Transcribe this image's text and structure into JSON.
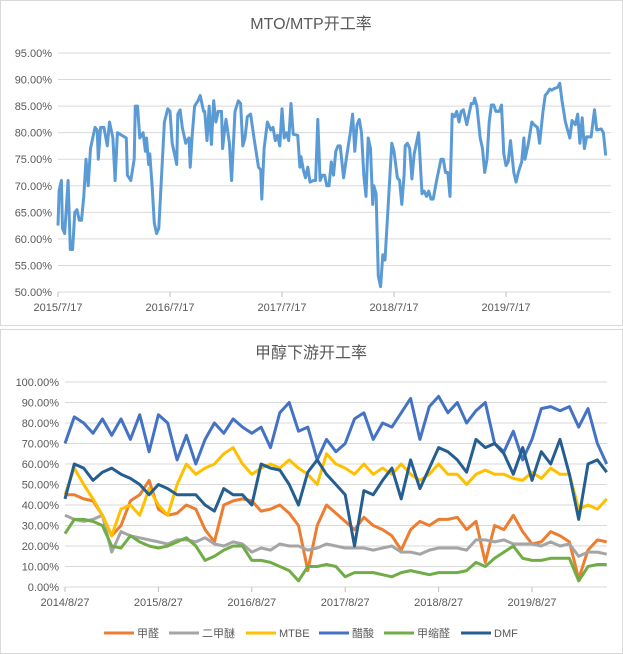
{
  "chart_data": [
    {
      "type": "line",
      "title": "MTO/MTP开工率",
      "xlabel": "",
      "ylabel": "",
      "ylim": [
        0.5,
        0.95
      ],
      "yticks": [
        "50.00%",
        "55.00%",
        "60.00%",
        "65.00%",
        "70.00%",
        "75.00%",
        "80.00%",
        "85.00%",
        "90.00%",
        "95.00%"
      ],
      "xticks": [
        "2015/7/17",
        "2016/7/17",
        "2017/7/17",
        "2018/7/17",
        "2019/7/17"
      ],
      "x_unit": "years since 2015/7/17",
      "grid": true,
      "color": "#5B9BD5",
      "series": [
        {
          "name": "MTO/MTP开工率",
          "x": [
            0,
            0.01,
            0.03,
            0.04,
            0.06,
            0.09,
            0.11,
            0.13,
            0.15,
            0.17,
            0.19,
            0.21,
            0.23,
            0.25,
            0.27,
            0.29,
            0.33,
            0.35,
            0.36,
            0.38,
            0.41,
            0.44,
            0.46,
            0.49,
            0.51,
            0.53,
            0.57,
            0.61,
            0.62,
            0.65,
            0.68,
            0.69,
            0.71,
            0.73,
            0.76,
            0.78,
            0.79,
            0.81,
            0.82,
            0.84,
            0.86,
            0.88,
            0.9,
            0.95,
            0.98,
            1.0,
            1.02,
            1.04,
            1.06,
            1.07,
            1.09,
            1.11,
            1.14,
            1.15,
            1.17,
            1.18,
            1.2,
            1.22,
            1.25,
            1.27,
            1.3,
            1.31,
            1.33,
            1.35,
            1.37,
            1.39,
            1.41,
            1.43,
            1.46,
            1.47,
            1.49,
            1.5,
            1.53,
            1.55,
            1.58,
            1.61,
            1.63,
            1.65,
            1.67,
            1.69,
            1.72,
            1.75,
            1.79,
            1.81,
            1.82,
            1.84,
            1.87,
            1.9,
            1.92,
            1.94,
            1.96,
            1.98,
            2.0,
            2.02,
            2.04,
            2.06,
            2.08,
            2.1,
            2.14,
            2.16,
            2.17,
            2.19,
            2.21,
            2.23,
            2.25,
            2.28,
            2.3,
            2.32,
            2.34,
            2.36,
            2.38,
            2.4,
            2.42,
            2.44,
            2.46,
            2.48,
            2.5,
            2.52,
            2.55,
            2.58,
            2.61,
            2.63,
            2.65,
            2.67,
            2.69,
            2.71,
            2.73,
            2.75,
            2.77,
            2.79,
            2.81,
            2.82,
            2.84,
            2.86,
            2.88,
            2.9,
            2.92,
            2.95,
            2.98,
            3.0,
            3.03,
            3.05,
            3.07,
            3.09,
            3.1,
            3.12,
            3.14,
            3.16,
            3.18,
            3.22,
            3.25,
            3.27,
            3.29,
            3.31,
            3.33,
            3.35,
            3.38,
            3.42,
            3.44,
            3.46,
            3.48,
            3.5,
            3.52,
            3.54,
            3.56,
            3.58,
            3.6,
            3.62,
            3.65,
            3.67,
            3.69,
            3.71,
            3.72,
            3.74,
            3.77,
            3.79,
            3.81,
            3.83,
            3.85,
            3.87,
            3.89,
            3.91,
            3.94,
            3.96,
            3.98,
            4.0,
            4.02,
            4.04,
            4.07,
            4.09,
            4.11,
            4.14,
            4.16,
            4.17,
            4.2,
            4.23,
            4.25,
            4.28,
            4.3,
            4.33,
            4.35,
            4.37,
            4.39,
            4.41,
            4.43,
            4.46,
            4.48,
            4.5,
            4.53,
            4.57,
            4.59,
            4.62,
            4.64,
            4.66,
            4.68,
            4.7,
            4.72,
            4.76,
            4.79,
            4.81,
            4.85,
            4.87,
            4.89
          ],
          "values": [
            62.5,
            69,
            71,
            62,
            61,
            71,
            58,
            58,
            65,
            65.5,
            63.5,
            63.5,
            68,
            75,
            70,
            77,
            81,
            80.5,
            75,
            81,
            81,
            77.5,
            82,
            79,
            71,
            80,
            79.5,
            79,
            72,
            71,
            75,
            85,
            85,
            79,
            80,
            76.5,
            79,
            74,
            76,
            70,
            63,
            61,
            62,
            82,
            84.5,
            84,
            78,
            76,
            74,
            83.5,
            84.3,
            81,
            78,
            78.5,
            79,
            73.5,
            80,
            85,
            86,
            87,
            84,
            84,
            78.5,
            85,
            77.8,
            86,
            82,
            84,
            84,
            77,
            81,
            82.5,
            78,
            71,
            84,
            86,
            85.5,
            77.5,
            79,
            83,
            83.5,
            79,
            73.5,
            73,
            67.5,
            77,
            82,
            80.5,
            81,
            78.5,
            79.5,
            77.5,
            84.5,
            79,
            80,
            78.5,
            85.5,
            79.7,
            79.5,
            73.5,
            75.5,
            73,
            71.5,
            73.5,
            70.7,
            71,
            71,
            82.5,
            71,
            72,
            72,
            70,
            70,
            74.5,
            72,
            76.5,
            77.5,
            77.5,
            71.5,
            76,
            80,
            83.5,
            76.5,
            81.5,
            82.5,
            80,
            72,
            68,
            79,
            77,
            66.5,
            70,
            68.5,
            53,
            51,
            57,
            56,
            67,
            78,
            76.5,
            71.5,
            71,
            66.5,
            72,
            77.5,
            78,
            77,
            71.3,
            76,
            80,
            68.5,
            69,
            68,
            69,
            67.5,
            67.5,
            71,
            75,
            75,
            72.5,
            72.5,
            68,
            83.5,
            83,
            84,
            82,
            84,
            84.3,
            81.5,
            83.5,
            85.5,
            85.5,
            86.5,
            85,
            79,
            77,
            72.5,
            75,
            82,
            85.2,
            85.2,
            84,
            84,
            85.2,
            76,
            73.8,
            74.5,
            78.5,
            72.5,
            70.7,
            72.5,
            74.5,
            79,
            75,
            78,
            82,
            81.5,
            81,
            78,
            84,
            87,
            87.5,
            88.2,
            88,
            88.3,
            88.5,
            89.3,
            86,
            82,
            79,
            82.3,
            81.5,
            83.5,
            78,
            82.8,
            77,
            79.2,
            79.2,
            84.3,
            80.5,
            80.7,
            80,
            75.7
          ]
        }
      ]
    },
    {
      "type": "line",
      "title": "甲醇下游开工率",
      "xlabel": "",
      "ylabel": "",
      "ylim": [
        0,
        1.0
      ],
      "yticks": [
        "0.00%",
        "10.00%",
        "20.00%",
        "30.00%",
        "40.00%",
        "50.00%",
        "60.00%",
        "70.00%",
        "80.00%",
        "90.00%",
        "100.00%"
      ],
      "xticks": [
        "2014/8/27",
        "2015/8/27",
        "2016/8/27",
        "2017/8/27",
        "2018/8/27",
        "2019/8/27"
      ],
      "x_unit": "years since 2014/8/27, step 0.1",
      "grid": true,
      "legend": "bottom",
      "series": [
        {
          "name": "甲醛",
          "color": "#ED7D31",
          "values": [
            45,
            45,
            43,
            42,
            35,
            25,
            30,
            42,
            45,
            52,
            38,
            35,
            36,
            40,
            38,
            28,
            22,
            40,
            42,
            43,
            42,
            37,
            38,
            40,
            36,
            30,
            8,
            30,
            40,
            36,
            32,
            28,
            34,
            30,
            28,
            25,
            18,
            28,
            32,
            30,
            33,
            33,
            34,
            28,
            32,
            12,
            30,
            28,
            35,
            27,
            21,
            22,
            27,
            25,
            22,
            4,
            18,
            23,
            22
          ]
        },
        {
          "name": "二甲醚",
          "color": "#A5A5A5",
          "values": [
            35,
            33,
            32,
            33,
            35,
            17,
            27,
            25,
            24,
            23,
            22,
            21,
            23,
            23,
            22,
            24,
            21,
            20,
            22,
            21,
            17,
            19,
            18,
            21,
            20,
            20,
            18,
            19,
            21,
            20,
            19,
            19,
            19,
            18,
            19,
            20,
            17,
            17,
            16,
            18,
            19,
            19,
            19,
            18,
            23,
            23,
            22,
            23,
            21,
            21,
            21,
            20,
            22,
            20,
            21,
            15,
            17,
            17,
            16
          ]
        },
        {
          "name": "MTBE",
          "color": "#FFC000",
          "values": [
            45,
            58,
            50,
            43,
            35,
            25,
            38,
            40,
            35,
            48,
            40,
            35,
            50,
            60,
            55,
            58,
            60,
            65,
            68,
            60,
            55,
            58,
            60,
            58,
            62,
            58,
            55,
            50,
            65,
            60,
            58,
            55,
            60,
            55,
            58,
            55,
            60,
            55,
            52,
            55,
            60,
            55,
            55,
            50,
            55,
            57,
            55,
            55,
            53,
            52,
            56,
            53,
            58,
            55,
            55,
            38,
            40,
            38,
            43
          ]
        },
        {
          "name": "醋酸",
          "color": "#4472C4",
          "values": [
            70,
            83,
            80,
            75,
            82,
            74,
            82,
            72,
            84,
            66,
            84,
            80,
            62,
            74,
            60,
            72,
            80,
            75,
            82,
            78,
            75,
            78,
            68,
            85,
            90,
            76,
            78,
            62,
            72,
            66,
            70,
            82,
            85,
            72,
            80,
            78,
            85,
            92,
            72,
            88,
            93,
            85,
            90,
            80,
            86,
            90,
            70,
            66,
            76,
            62,
            72,
            87,
            88,
            86,
            88,
            78,
            87,
            70,
            60
          ]
        },
        {
          "name": "甲缩醛",
          "color": "#70AD47",
          "values": [
            26,
            33,
            33,
            32,
            30,
            20,
            19,
            25,
            22,
            20,
            19,
            20,
            22,
            24,
            20,
            13,
            15,
            18,
            20,
            20,
            13,
            13,
            12,
            10,
            8,
            3,
            10,
            10,
            11,
            10,
            5,
            7,
            7,
            7,
            6,
            5,
            7,
            8,
            7,
            6,
            7,
            7,
            7,
            8,
            12,
            10,
            14,
            17,
            20,
            14,
            13,
            13,
            14,
            14,
            14,
            3,
            10,
            11,
            11
          ]
        },
        {
          "name": "DMF",
          "color": "#255E91",
          "values": [
            43,
            60,
            58,
            52,
            56,
            58,
            55,
            53,
            50,
            45,
            50,
            48,
            45,
            45,
            45,
            40,
            37,
            48,
            45,
            45,
            40,
            60,
            58,
            57,
            50,
            40,
            56,
            62,
            55,
            50,
            45,
            20,
            47,
            45,
            52,
            58,
            43,
            62,
            48,
            58,
            68,
            66,
            62,
            56,
            72,
            68,
            70,
            65,
            55,
            68,
            52,
            66,
            60,
            72,
            55,
            33,
            60,
            62,
            56
          ]
        }
      ]
    }
  ]
}
